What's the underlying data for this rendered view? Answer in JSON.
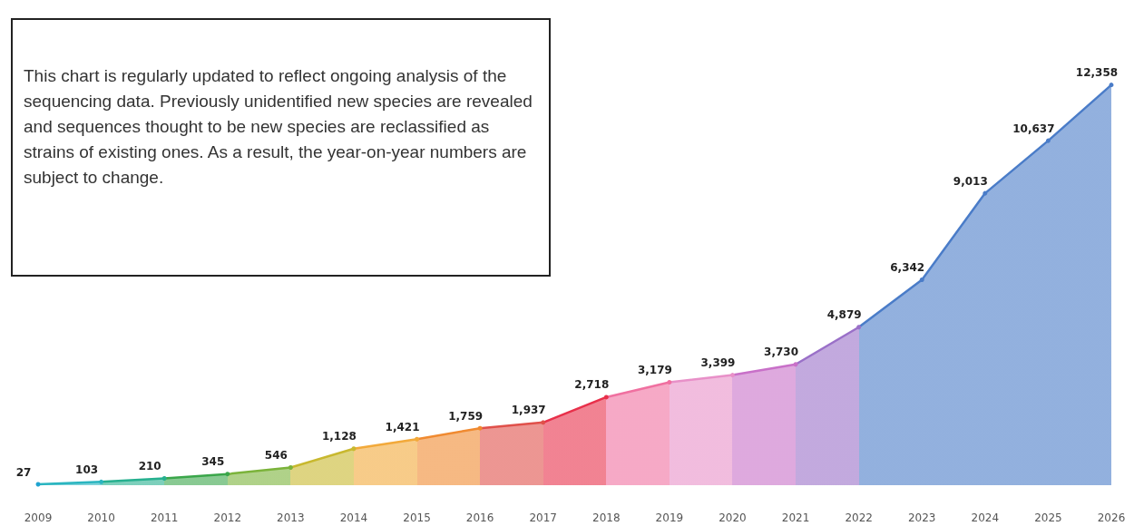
{
  "chart_data": {
    "type": "area",
    "categories": [
      "2009",
      "2010",
      "2011",
      "2012",
      "2013",
      "2014",
      "2015",
      "2016",
      "2017",
      "2018",
      "2019",
      "2020",
      "2021",
      "2022",
      "2023",
      "2024",
      "2025",
      "2026"
    ],
    "values": [
      27,
      103,
      210,
      345,
      546,
      1128,
      1421,
      1759,
      1937,
      2718,
      3179,
      3399,
      3730,
      4879,
      6342,
      9013,
      10637,
      12358
    ],
    "colors": [
      "#1fa3d0",
      "#2ab5c0",
      "#26b08f",
      "#3aa64a",
      "#7bb33a",
      "#c8b82e",
      "#f2a93a",
      "#f08a30",
      "#e0504a",
      "#e8304a",
      "#f070a0",
      "#e890c8",
      "#c870c8",
      "#9a70c8",
      "#4a7cc8",
      "#4a7cc8",
      "#4a7cc8",
      "#4a7cc8"
    ],
    "value_labels": [
      "27",
      "103",
      "210",
      "345",
      "546",
      "1,128",
      "1,421",
      "1,759",
      "1,937",
      "2,718",
      "3,179",
      "3,399",
      "3,730",
      "4,879",
      "6,342",
      "9,013",
      "10,637",
      "12,358"
    ],
    "annotations": [
      "This chart is regularly updated to reflect ongoing analysis of the sequencing data. Previously unidentified new species are revealed and sequences thought to be new species are reclassified as strains of existing ones. As a result, the year-on-year numbers are subject to change."
    ]
  }
}
